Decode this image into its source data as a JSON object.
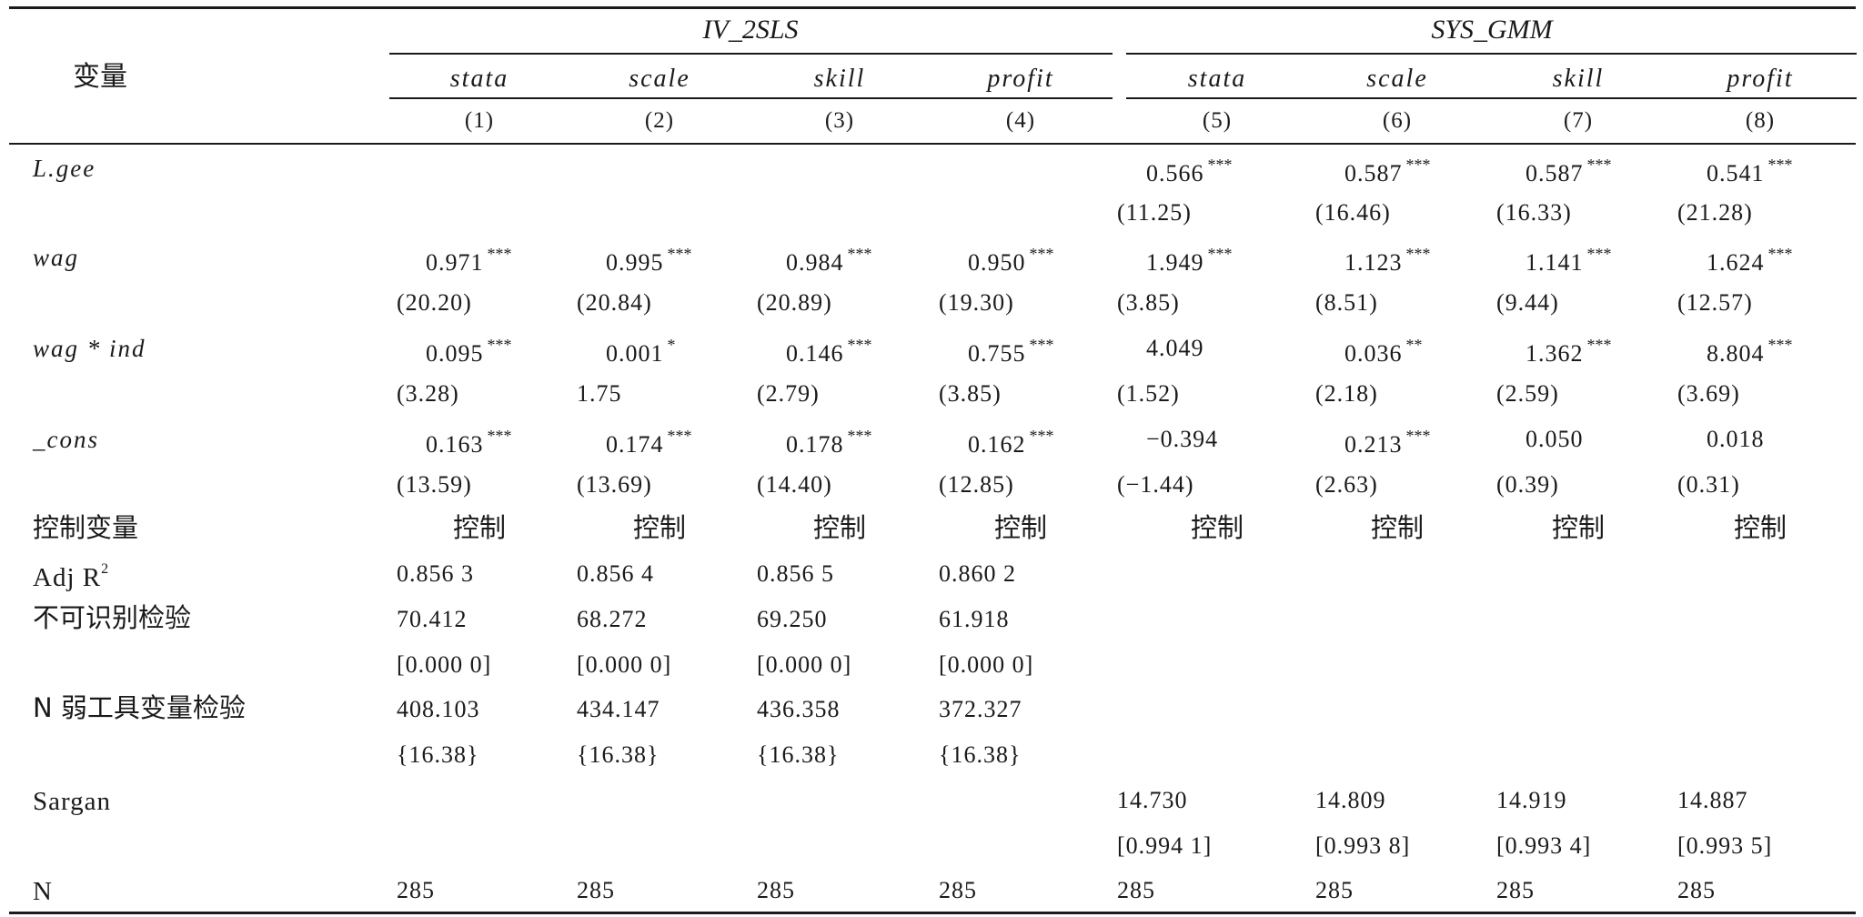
{
  "header": {
    "variable_label": "变量",
    "groups": [
      {
        "name": "IV_2SLS"
      },
      {
        "name": "SYS_GMM"
      }
    ],
    "columns": [
      {
        "name": "stata",
        "num": "(1)"
      },
      {
        "name": "scale",
        "num": "(2)"
      },
      {
        "name": "skill",
        "num": "(3)"
      },
      {
        "name": "profit",
        "num": "(4)"
      },
      {
        "name": "stata",
        "num": "(5)"
      },
      {
        "name": "scale",
        "num": "(6)"
      },
      {
        "name": "skill",
        "num": "(7)"
      },
      {
        "name": "profit",
        "num": "(8)"
      }
    ]
  },
  "rows": [
    {
      "label": "L.gee",
      "label_italic": true,
      "cells": [
        "",
        "",
        "",
        "",
        "0.566",
        "0.587",
        "0.587",
        "0.541"
      ],
      "stars": [
        "",
        "",
        "",
        "",
        "***",
        "***",
        "***",
        "***"
      ]
    },
    {
      "label": "",
      "cells": [
        "",
        "",
        "",
        "",
        "(11.25)",
        "(16.46)",
        "(16.33)",
        "(21.28)"
      ]
    },
    {
      "label": "wag",
      "label_italic": true,
      "cells": [
        "0.971",
        "0.995",
        "0.984",
        "0.950",
        "1.949",
        "1.123",
        "1.141",
        "1.624"
      ],
      "stars": [
        "***",
        "***",
        "***",
        "***",
        "***",
        "***",
        "***",
        "***"
      ]
    },
    {
      "label": "",
      "cells": [
        "(20.20)",
        "(20.84)",
        "(20.89)",
        "(19.30)",
        "(3.85)",
        "(8.51)",
        "(9.44)",
        "(12.57)"
      ]
    },
    {
      "label": "wag * ind",
      "label_italic": true,
      "cells": [
        "0.095",
        "0.001",
        "0.146",
        "0.755",
        "4.049",
        "0.036",
        "1.362",
        "8.804"
      ],
      "stars": [
        "***",
        "*",
        "***",
        "***",
        "",
        "**",
        "***",
        "***"
      ]
    },
    {
      "label": "",
      "cells": [
        "(3.28)",
        "1.75",
        "(2.79)",
        "(3.85)",
        "(1.52)",
        "(2.18)",
        "(2.59)",
        "(3.69)"
      ]
    },
    {
      "label": "_cons",
      "label_italic": true,
      "cells": [
        "0.163",
        "0.174",
        "0.178",
        "0.162",
        "−0.394",
        "0.213",
        "0.050",
        "0.018"
      ],
      "stars": [
        "***",
        "***",
        "***",
        "***",
        "",
        "***",
        "",
        ""
      ]
    },
    {
      "label": "",
      "cells": [
        "(13.59)",
        "(13.69)",
        "(14.40)",
        "(12.85)",
        "(−1.44)",
        "(2.63)",
        "(0.39)",
        "(0.31)"
      ]
    },
    {
      "label": "控制变量",
      "cells_center": true,
      "cells": [
        "控制",
        "控制",
        "控制",
        "控制",
        "控制",
        "控制",
        "控制",
        "控制"
      ]
    },
    {
      "label": "Adj R",
      "label_sup": "2",
      "cells": [
        "0.856 3",
        "0.856 4",
        "0.856 5",
        "0.860 2",
        "",
        "",
        "",
        ""
      ]
    },
    {
      "label": "不可识别检验",
      "cells": [
        "70.412",
        "68.272",
        "69.250",
        "61.918",
        "",
        "",
        "",
        ""
      ]
    },
    {
      "label": "",
      "cells": [
        "[0.000 0]",
        "[0.000 0]",
        "[0.000 0]",
        "[0.000 0]",
        "",
        "",
        "",
        ""
      ]
    },
    {
      "label": "N 弱工具变量检验",
      "cells": [
        "408.103",
        "434.147",
        "436.358",
        "372.327",
        "",
        "",
        "",
        ""
      ]
    },
    {
      "label": "",
      "cells": [
        "{16.38}",
        "{16.38}",
        "{16.38}",
        "{16.38}",
        "",
        "",
        "",
        ""
      ]
    },
    {
      "label": "Sargan",
      "cells": [
        "",
        "",
        "",
        "",
        "14.730",
        "14.809",
        "14.919",
        "14.887"
      ]
    },
    {
      "label": "",
      "cells": [
        "",
        "",
        "",
        "",
        "[0.994 1]",
        "[0.993 8]",
        "[0.993 4]",
        "[0.993 5]"
      ]
    },
    {
      "label": "N",
      "cells": [
        "285",
        "285",
        "285",
        "285",
        "285",
        "285",
        "285",
        "285"
      ]
    }
  ]
}
